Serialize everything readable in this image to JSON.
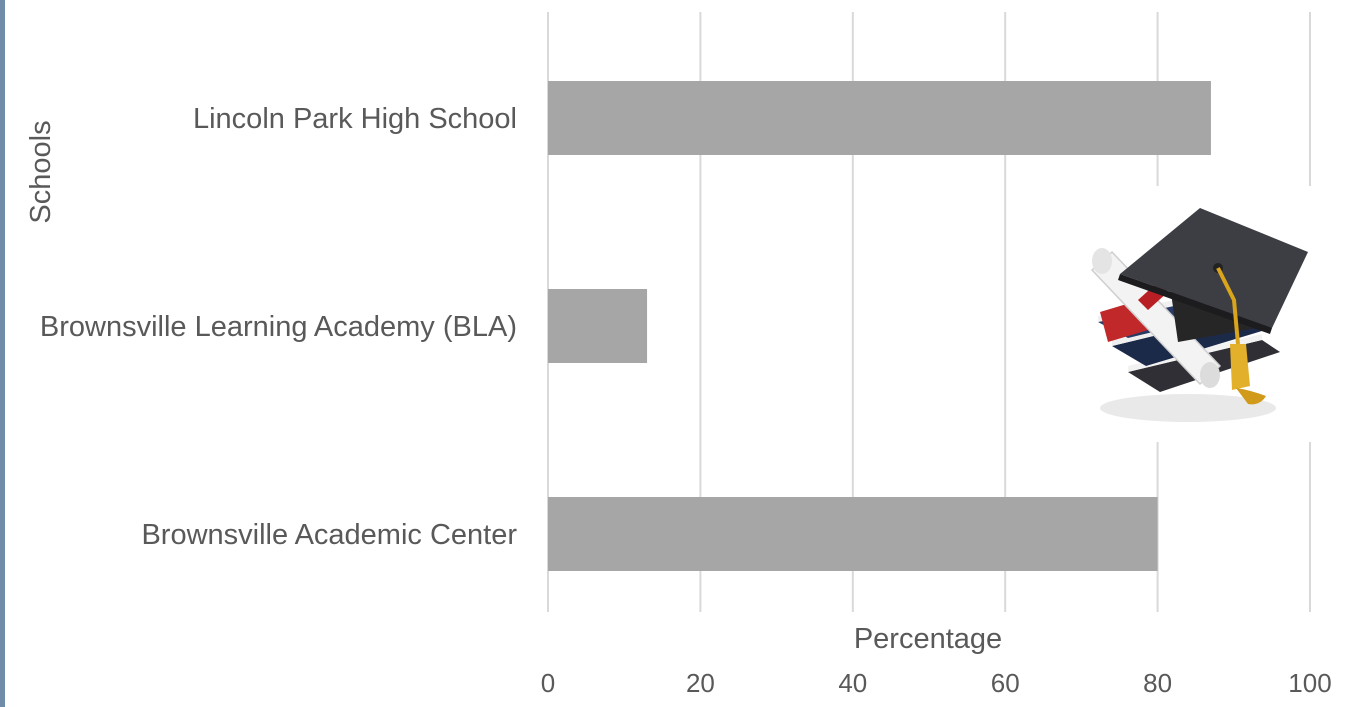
{
  "chart_data": {
    "type": "bar",
    "orientation": "horizontal",
    "categories": [
      "Lincoln Park High School",
      "Brownsville Learning Academy (BLA)",
      "Brownsville Academic Center"
    ],
    "values": [
      87,
      13,
      80
    ],
    "xlabel": "Percentage",
    "ylabel": "Schools",
    "xlim": [
      0,
      100
    ],
    "xticks": [
      "0",
      "20",
      "40",
      "60",
      "80",
      "100"
    ],
    "bar_color": "#a6a6a6",
    "grid": true,
    "legend": "none"
  },
  "decoration": {
    "icon": "graduation-cap-books-icon"
  }
}
